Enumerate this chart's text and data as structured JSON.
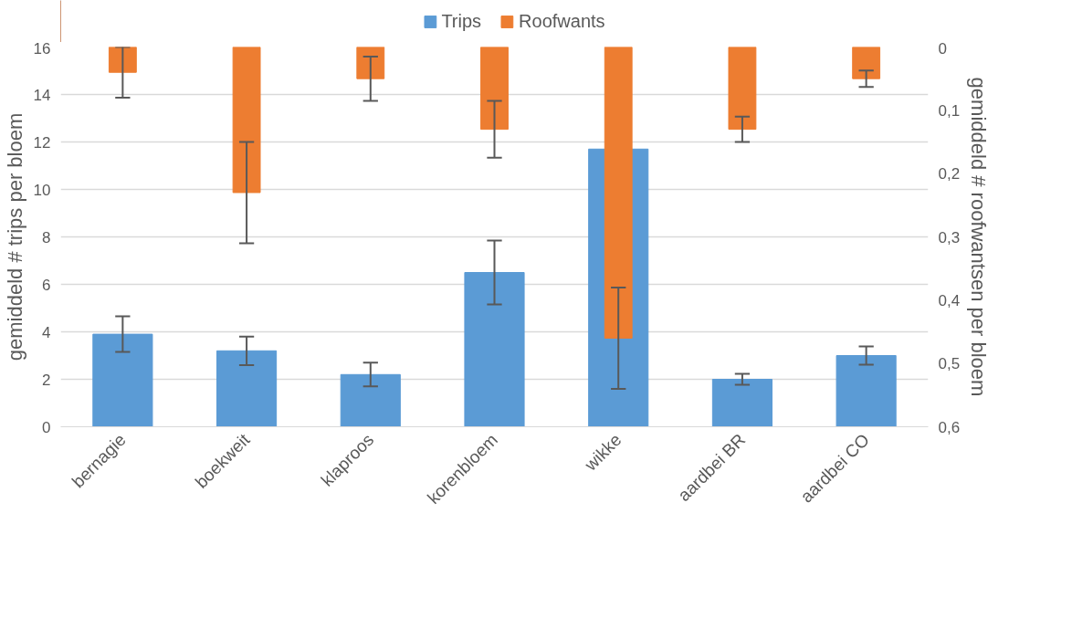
{
  "chart_data": {
    "type": "bar",
    "categories": [
      "bernagie",
      "boekweit",
      "klaproos",
      "korenbloem",
      "wikke",
      "aardbei BR",
      "aardbei CO"
    ],
    "series": [
      {
        "name": "Trips",
        "color": "#5b9bd5",
        "values": [
          3.9,
          3.2,
          2.2,
          6.5,
          11.7,
          2.0,
          3.0
        ],
        "errors": [
          0.75,
          0.6,
          0.5,
          1.35,
          null,
          0.23,
          0.38
        ]
      },
      {
        "name": "Roofwants",
        "color": "#ed7d31",
        "axis": "y2",
        "values": [
          0.04,
          0.23,
          0.05,
          0.13,
          0.46,
          0.13,
          0.05
        ],
        "errors": [
          0.04,
          0.08,
          0.035,
          0.045,
          0.08,
          0.02,
          0.013
        ]
      }
    ],
    "ylabel": "gemiddeld # trips per bloem",
    "y2label": "gemiddeld # roofwantsen per bloem",
    "ylim": [
      0,
      16
    ],
    "yticks": [
      0,
      2,
      4,
      6,
      8,
      10,
      12,
      14,
      16
    ],
    "y2lim": [
      0.6,
      0
    ],
    "y2ticks": [
      {
        "value": 0,
        "label": "0"
      },
      {
        "value": 0.1,
        "label": "0,1"
      },
      {
        "value": 0.2,
        "label": "0,2"
      },
      {
        "value": 0.3,
        "label": "0,3"
      },
      {
        "value": 0.4,
        "label": "0,4"
      },
      {
        "value": 0.5,
        "label": "0,5"
      },
      {
        "value": 0.6,
        "label": "0,6"
      }
    ],
    "grid": "y",
    "legend": "top"
  }
}
